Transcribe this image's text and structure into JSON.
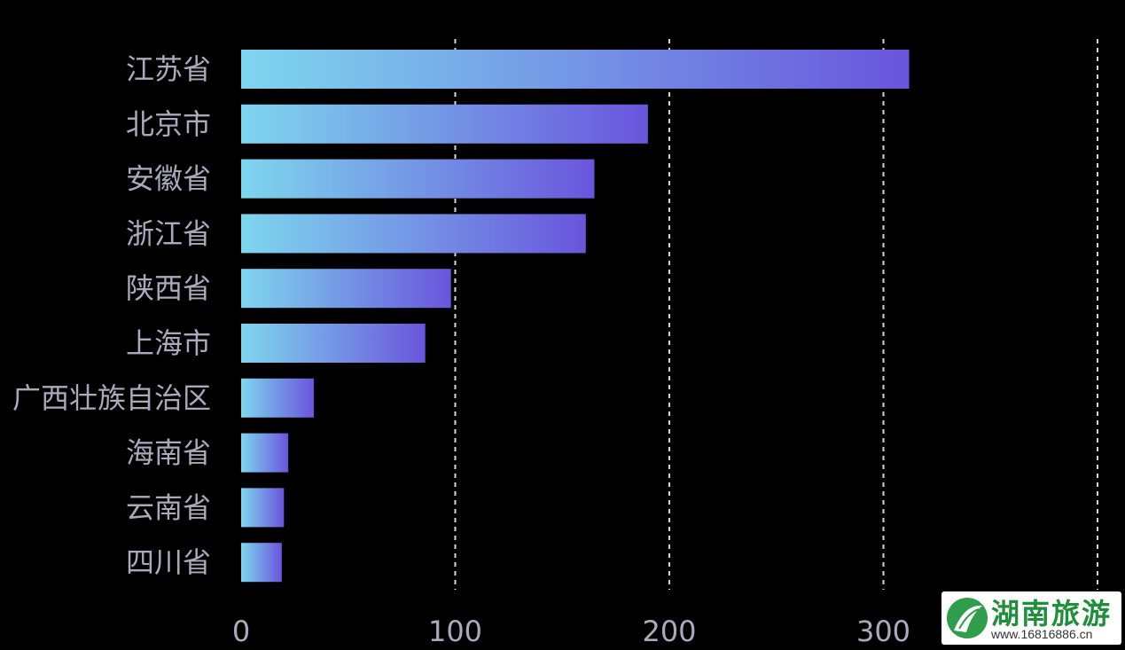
{
  "chart_data": {
    "type": "bar",
    "orientation": "horizontal",
    "categories": [
      "江苏省",
      "北京市",
      "安徽省",
      "浙江省",
      "陕西省",
      "上海市",
      "广西壮族自治区",
      "海南省",
      "云南省",
      "四川省"
    ],
    "values": [
      312,
      190,
      165,
      161,
      98,
      86,
      34,
      22,
      20,
      19
    ],
    "xlim": [
      0,
      400
    ],
    "xticks": [
      "0",
      "100",
      "200",
      "300"
    ],
    "grid": "vertical-dashed",
    "colors": {
      "background": "#000000",
      "bar_start": "#7ed6ee",
      "bar_end": "#6a55dc",
      "grid": "#d8d8d8",
      "label": "#a9abbd"
    }
  },
  "watermark": {
    "title": "湖南旅游",
    "url": "www.16816886.cn"
  }
}
